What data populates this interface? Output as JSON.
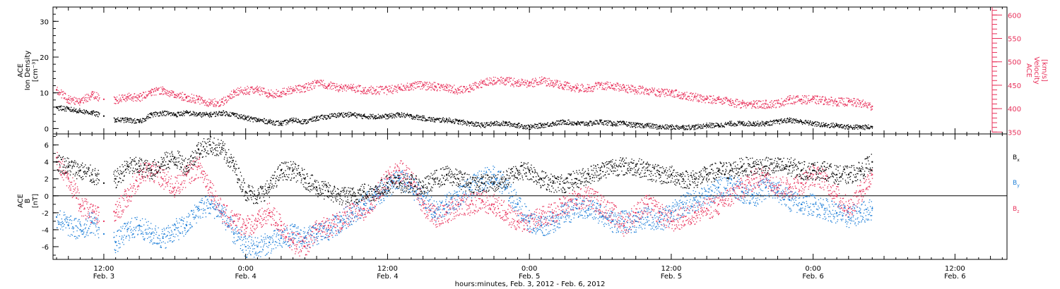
{
  "xlabel": "hours:minutes, Feb.  3, 2012 - Feb.  6, 2012",
  "x_ticks": [
    {
      "t": 12,
      "time": "12:00",
      "day": "Feb. 3"
    },
    {
      "t": 24,
      "time": "0:00",
      "day": "Feb. 4"
    },
    {
      "t": 36,
      "time": "12:00",
      "day": "Feb. 4"
    },
    {
      "t": 48,
      "time": "0:00",
      "day": "Feb. 5"
    },
    {
      "t": 60,
      "time": "12:00",
      "day": "Feb. 5"
    },
    {
      "t": 72,
      "time": "0:00",
      "day": "Feb. 6"
    },
    {
      "t": 84,
      "time": "12:00",
      "day": "Feb. 6"
    }
  ],
  "colors": {
    "black": "#000000",
    "red": "#e8305a",
    "blue": "#1e7fd8"
  },
  "top_panel": {
    "ylabel_left": [
      "ACE",
      "Ion Density",
      "[cm⁻³]"
    ],
    "ylabel_right": [
      "ACE",
      "Velocity",
      "[km/s]"
    ],
    "left_ticks": [
      "0",
      "10",
      "20",
      "30"
    ],
    "right_ticks": [
      "350",
      "400",
      "450",
      "500",
      "550",
      "600"
    ]
  },
  "bottom_panel": {
    "ylabel_left": [
      "ACE",
      "B",
      "[nT]"
    ],
    "left_ticks": [
      "-6",
      "-4",
      "-2",
      "0",
      "2",
      "4",
      "6"
    ],
    "legend": [
      {
        "label": "Bx",
        "color": "#000000"
      },
      {
        "label": "By",
        "color": "#1e7fd8"
      },
      {
        "label": "Bz",
        "color": "#e8305a"
      }
    ]
  },
  "chart_data": [
    {
      "type": "scatter",
      "xlabel": "hours:minutes, Feb.  3, 2012 - Feb.  6, 2012",
      "ylabel": "ACE Ion Density [cm-3]",
      "ylabel_right": "ACE Velocity [km/s]",
      "xlim": [
        7.7,
        88.4
      ],
      "ylim": [
        -1.5,
        34
      ],
      "ylim_right": [
        346,
        617
      ],
      "series": [
        {
          "axis": "left",
          "color": "#000000",
          "x": [
            8,
            9,
            10,
            11,
            12,
            13,
            14,
            15,
            16,
            17,
            18,
            19,
            20,
            21,
            22,
            23,
            24,
            25,
            26,
            27,
            28,
            29,
            30,
            31,
            32,
            33,
            34,
            35,
            36,
            37,
            38,
            39,
            40,
            41,
            42,
            43,
            44,
            45,
            46,
            47,
            48,
            49,
            50,
            51,
            52,
            53,
            54,
            55,
            56,
            57,
            58,
            59,
            60,
            61,
            62,
            63,
            64,
            65,
            66,
            67,
            68,
            69,
            70,
            71,
            72,
            73,
            74,
            75,
            76,
            77
          ],
          "y": [
            6,
            5.5,
            5,
            4.5,
            3.5,
            2.5,
            2.5,
            2,
            4,
            4.5,
            4,
            4.5,
            4,
            4,
            4.5,
            4,
            3,
            2.5,
            2,
            1.5,
            2.5,
            2,
            3,
            3.5,
            4,
            4,
            3.5,
            3.5,
            3.5,
            4,
            3.5,
            3,
            2.5,
            2.5,
            2,
            1.5,
            1,
            1.5,
            1.5,
            1,
            0.5,
            1,
            1.5,
            2,
            1.5,
            1.5,
            2,
            1.5,
            1.5,
            1,
            1,
            0.5,
            0.5,
            0.5,
            0.5,
            1,
            1,
            1.5,
            1.5,
            1.5,
            1.5,
            2,
            2.5,
            2,
            1.5,
            1,
            1,
            0.5,
            0.5,
            0.5
          ]
        },
        {
          "axis": "right",
          "color": "#e8305a",
          "x": [
            8,
            9,
            10,
            11,
            12,
            13,
            14,
            15,
            16,
            17,
            18,
            19,
            20,
            21,
            22,
            23,
            24,
            25,
            26,
            27,
            28,
            29,
            30,
            31,
            32,
            33,
            34,
            35,
            36,
            37,
            38,
            39,
            40,
            41,
            42,
            43,
            44,
            45,
            46,
            47,
            48,
            49,
            50,
            51,
            52,
            53,
            54,
            55,
            56,
            57,
            58,
            59,
            60,
            61,
            62,
            63,
            64,
            65,
            66,
            67,
            68,
            69,
            70,
            71,
            72,
            73,
            74,
            75,
            76,
            77
          ],
          "y": [
            440,
            420,
            415,
            430,
            420,
            420,
            425,
            425,
            435,
            440,
            430,
            425,
            420,
            412,
            415,
            435,
            440,
            440,
            432,
            435,
            440,
            445,
            455,
            450,
            445,
            445,
            440,
            440,
            440,
            445,
            450,
            450,
            448,
            445,
            440,
            445,
            455,
            460,
            460,
            455,
            455,
            460,
            455,
            450,
            445,
            445,
            450,
            450,
            445,
            440,
            440,
            435,
            435,
            430,
            425,
            420,
            420,
            415,
            410,
            410,
            410,
            412,
            420,
            420,
            420,
            418,
            415,
            415,
            412,
            405
          ]
        }
      ]
    },
    {
      "type": "scatter",
      "xlabel": "hours:minutes, Feb.  3, 2012 - Feb.  6, 2012",
      "ylabel": "ACE B [nT]",
      "xlim": [
        7.7,
        88.4
      ],
      "ylim": [
        -7.5,
        7.3
      ],
      "series": [
        {
          "name": "Bx",
          "color": "#000000",
          "x": [
            8,
            9,
            10,
            11,
            12,
            13,
            14,
            15,
            16,
            17,
            18,
            19,
            20,
            21,
            22,
            23,
            24,
            25,
            26,
            27,
            28,
            29,
            30,
            31,
            32,
            33,
            34,
            35,
            36,
            37,
            38,
            39,
            40,
            41,
            42,
            43,
            44,
            45,
            46,
            47,
            48,
            49,
            50,
            51,
            52,
            53,
            54,
            55,
            56,
            57,
            58,
            59,
            60,
            61,
            62,
            63,
            64,
            65,
            66,
            67,
            68,
            69,
            70,
            71,
            72,
            73,
            74,
            75,
            76,
            77
          ],
          "y": [
            4,
            3.5,
            3,
            2.5,
            1.5,
            2,
            3.5,
            3.5,
            3,
            4,
            4.5,
            3.5,
            5.5,
            6,
            5.5,
            3.5,
            0.5,
            0,
            1,
            3,
            3,
            2,
            1,
            0.5,
            0,
            0,
            0.5,
            0.5,
            1.5,
            1.5,
            1.5,
            1,
            2,
            2.5,
            2,
            1.5,
            1.5,
            1.5,
            2,
            3,
            3,
            2,
            1.5,
            1.5,
            2,
            2.5,
            3,
            3.5,
            3.5,
            3.5,
            3,
            2.5,
            2.5,
            2,
            2,
            2.5,
            3,
            3,
            3.5,
            3.5,
            3.5,
            3.5,
            3.5,
            3,
            3,
            3,
            2.5,
            2.5,
            3,
            4
          ]
        },
        {
          "name": "By",
          "color": "#1e7fd8",
          "x": [
            8,
            9,
            10,
            11,
            12,
            13,
            14,
            15,
            16,
            17,
            18,
            19,
            20,
            21,
            22,
            23,
            24,
            25,
            26,
            27,
            28,
            29,
            30,
            31,
            32,
            33,
            34,
            35,
            36,
            37,
            38,
            39,
            40,
            41,
            42,
            43,
            44,
            45,
            46,
            47,
            48,
            49,
            50,
            51,
            52,
            53,
            54,
            55,
            56,
            57,
            58,
            59,
            60,
            61,
            62,
            63,
            64,
            65,
            66,
            67,
            68,
            69,
            70,
            71,
            72,
            73,
            74,
            75,
            76,
            77
          ],
          "y": [
            -2.5,
            -3.5,
            -4,
            -3,
            -4.5,
            -5.5,
            -4,
            -3.5,
            -4.5,
            -5,
            -4,
            -3.5,
            -1.5,
            -1,
            -2,
            -4.5,
            -6,
            -6,
            -5.5,
            -5,
            -4.5,
            -5,
            -4.5,
            -4,
            -3,
            -2,
            -1,
            0,
            1,
            2,
            1,
            0,
            -2,
            -1,
            0,
            1,
            2,
            2.5,
            1,
            -1,
            -3,
            -3.5,
            -3,
            -2,
            -1.5,
            -1.5,
            -2,
            -3,
            -3,
            -3,
            -2.5,
            -3,
            -2,
            -1,
            -0.5,
            0,
            1,
            1.5,
            0.5,
            0,
            1,
            0.5,
            -0.5,
            -1,
            -1,
            -1.5,
            -2,
            -2.5,
            -2,
            -1.5
          ]
        },
        {
          "name": "Bz",
          "color": "#e8305a",
          "x": [
            8,
            9,
            10,
            11,
            12,
            13,
            14,
            15,
            16,
            17,
            18,
            19,
            20,
            21,
            22,
            23,
            24,
            25,
            26,
            27,
            28,
            29,
            30,
            31,
            32,
            33,
            34,
            35,
            36,
            37,
            38,
            39,
            40,
            41,
            42,
            43,
            44,
            45,
            46,
            47,
            48,
            49,
            50,
            51,
            52,
            53,
            54,
            55,
            56,
            57,
            58,
            59,
            60,
            61,
            62,
            63,
            64,
            65,
            66,
            67,
            68,
            69,
            70,
            71,
            72,
            73,
            74,
            75,
            76,
            77
          ],
          "y": [
            4.5,
            2,
            -1,
            -2,
            -3,
            -2,
            0,
            2.5,
            3,
            2,
            1,
            2.5,
            3.5,
            1,
            -2,
            -3,
            -3.5,
            -3,
            -2,
            -3.5,
            -5.5,
            -6,
            -4,
            -3.5,
            -3,
            -2,
            -1.5,
            0,
            2,
            3,
            2,
            -1,
            -2.5,
            -2,
            -1,
            -1,
            -0.5,
            -1,
            -2,
            -3,
            -3,
            -2.5,
            -2,
            -1,
            -0.5,
            0,
            -1,
            -2,
            -3.5,
            -2,
            -1,
            -2,
            -3,
            -2.5,
            -2,
            -1.5,
            -1,
            0,
            1,
            2,
            2.5,
            1,
            1,
            1.5,
            2.5,
            2,
            0,
            -1.5,
            0.5,
            2.5
          ]
        }
      ]
    }
  ]
}
